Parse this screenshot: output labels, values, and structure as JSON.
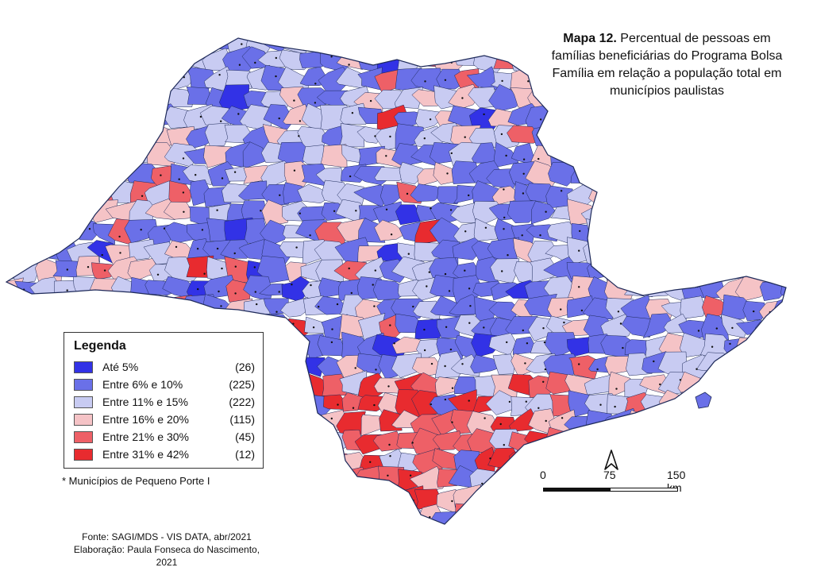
{
  "title": {
    "bold": "Mapa 12.",
    "text": "Percentual de pessoas em famílias beneficiárias do Programa Bolsa Família em relação a população total em municípios paulistas"
  },
  "legend": {
    "title": "Legenda",
    "items": [
      {
        "label": "Até 5%",
        "count": "(26)",
        "color": "#3232e6"
      },
      {
        "label": "Entre 6% e 10%",
        "count": "(225)",
        "color": "#6a70e8"
      },
      {
        "label": "Entre 11% e 15%",
        "count": "(222)",
        "color": "#c8cbf2"
      },
      {
        "label": "Entre 16% e 20%",
        "count": "(115)",
        "color": "#f5c3c6"
      },
      {
        "label": "Entre 21% e 30%",
        "count": "(45)",
        "color": "#ee6067"
      },
      {
        "label": "Entre 31% e 42%",
        "count": "(12)",
        "color": "#e82b2f"
      }
    ]
  },
  "footnote": "* Municípios de Pequeno Porte I",
  "source": {
    "line1": "Fonte: SAGI/MDS - VIS DATA, abr/2021",
    "line2": "Elaboração: Paula Fonseca do Nascimento, 2021"
  },
  "scale_bar": {
    "labels": [
      "0",
      "75",
      "150 km"
    ]
  },
  "north_arrow_icon": "north-arrow-icon"
}
